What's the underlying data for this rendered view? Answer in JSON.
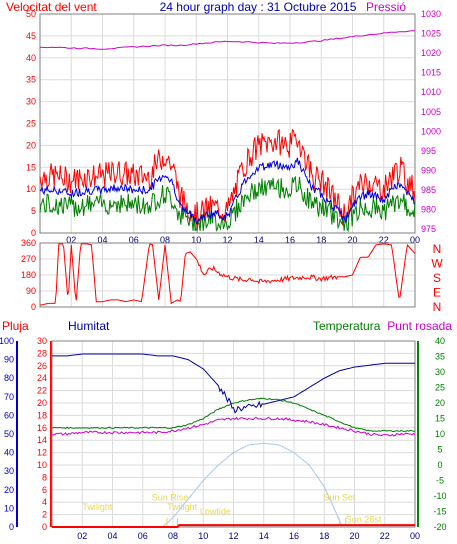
{
  "header": {
    "left_title": "Velocitat del vent",
    "center_title": "24 hour graph day : 31 Octubre 2015",
    "right_title": "Pressió"
  },
  "bottom_header": {
    "rain": "Pluja",
    "humidity": "Humitat",
    "temperature": "Temperatura",
    "dewpoint": "Punt rosada"
  },
  "colors": {
    "frame": "#7f7f7f",
    "grid": "#dcdcdc",
    "red": "#ff0000",
    "magenta": "#cc00cc",
    "blue": "#0000b4",
    "green": "#007f00",
    "sunblue": "#a8c8f0",
    "annotation": "#e8d84a",
    "darkblue": "#000080"
  },
  "chart_data": [
    {
      "type": "line",
      "title": "",
      "x_ticks": [
        "02",
        "04",
        "06",
        "08",
        "10",
        "12",
        "14",
        "16",
        "18",
        "20",
        "22",
        "00"
      ],
      "xlim": [
        0,
        24
      ],
      "y_left_ticks": [
        "0",
        "5",
        "10",
        "15",
        "20",
        "25",
        "30",
        "35",
        "40",
        "45",
        "50"
      ],
      "ylim_left": [
        0,
        50
      ],
      "y_right_ticks": [
        "975",
        "980",
        "985",
        "990",
        "995",
        "1000",
        "1005",
        "1010",
        "1015",
        "1020",
        "1025",
        "1030"
      ],
      "ylim_right": [
        974,
        1030
      ],
      "series": [
        {
          "name": "Velocitat del vent",
          "axis": "left",
          "color": "red",
          "style": "gust",
          "x": [
            0,
            1,
            2,
            3,
            4,
            5,
            6,
            7,
            7.5,
            8,
            8.5,
            9,
            10,
            11,
            12,
            12.5,
            13,
            13.5,
            14,
            15,
            16,
            16.5,
            17,
            17.5,
            18,
            19,
            19.5,
            20,
            20.5,
            21,
            22,
            22.5,
            23,
            23.5,
            24
          ],
          "values": [
            13,
            13,
            12,
            13,
            13,
            14,
            13,
            13,
            16,
            18,
            15,
            8,
            4,
            6,
            5,
            10,
            15,
            18,
            20,
            21,
            20,
            22,
            17,
            13,
            12,
            7,
            4,
            8,
            11,
            12,
            10,
            13,
            15,
            12,
            10
          ]
        },
        {
          "axis": "right",
          "color": "magenta",
          "style": "line",
          "x": [
            0,
            1,
            2,
            3,
            4,
            5,
            6,
            7,
            8,
            9,
            10,
            11,
            12,
            13,
            14,
            15,
            16,
            17,
            18,
            19,
            20,
            21,
            22,
            23,
            24
          ],
          "values": [
            1021.5,
            1021.5,
            1021.3,
            1021.2,
            1021.1,
            1021.3,
            1021.6,
            1021.8,
            1022,
            1022,
            1022.4,
            1022.7,
            1023,
            1022.9,
            1022.7,
            1022.5,
            1022.6,
            1022.8,
            1023.2,
            1023.7,
            1024.2,
            1024.7,
            1025.1,
            1025.5,
            1025.7
          ]
        }
      ]
    },
    {
      "type": "line",
      "title": "",
      "x_ticks": [
        "02",
        "04",
        "06",
        "08",
        "10",
        "12",
        "14",
        "16",
        "18",
        "20",
        "22",
        "00"
      ],
      "y_left_ticks": [
        "360",
        "270",
        "180",
        "90",
        "0"
      ],
      "ylim": [
        0,
        360
      ],
      "right_labels": [
        "N",
        "W",
        "S",
        "E",
        "N"
      ],
      "series": [
        {
          "color": "red",
          "style": "line",
          "x": [
            0,
            0.5,
            1,
            1.2,
            1.5,
            1.8,
            2,
            2.3,
            2.6,
            3,
            3.3,
            3.6,
            4,
            4.5,
            5,
            5.5,
            6,
            6.5,
            7,
            7.2,
            7.6,
            8,
            8.4,
            8.8,
            9,
            9.3,
            9.6,
            10,
            10.5,
            11,
            11.5,
            12,
            12.5,
            13,
            13.5,
            14,
            15,
            16,
            17,
            18,
            19,
            19.5,
            20,
            20.5,
            21,
            21.5,
            22,
            22.5,
            23,
            23.5,
            24
          ],
          "values": [
            10,
            20,
            20,
            355,
            355,
            25,
            350,
            15,
            355,
            355,
            350,
            30,
            30,
            40,
            40,
            30,
            40,
            30,
            355,
            350,
            40,
            350,
            20,
            40,
            30,
            300,
            310,
            270,
            180,
            220,
            190,
            170,
            160,
            150,
            160,
            140,
            150,
            160,
            170,
            160,
            170,
            170,
            180,
            280,
            280,
            350,
            355,
            350,
            30,
            350,
            300
          ]
        }
      ]
    },
    {
      "type": "line",
      "title": "",
      "x_ticks": [
        "02",
        "04",
        "06",
        "08",
        "10",
        "12",
        "14",
        "16",
        "18",
        "20",
        "22",
        "00"
      ],
      "ylim_humidity": [
        0,
        100
      ],
      "y_humidity_ticks": [
        "0",
        "10",
        "20",
        "30",
        "40",
        "50",
        "60",
        "70",
        "80",
        "90",
        "100"
      ],
      "ylim_rain": [
        0,
        30
      ],
      "y_rain_ticks": [
        "0",
        "2",
        "4",
        "6",
        "8",
        "10",
        "12",
        "14",
        "16",
        "18",
        "20",
        "22",
        "24",
        "26",
        "28",
        "30"
      ],
      "ylim_temp": [
        -20,
        40
      ],
      "y_temp_ticks": [
        "-20",
        "-15",
        "-10",
        "-5",
        "0",
        "5",
        "10",
        "15",
        "20",
        "25",
        "30",
        "35",
        "40"
      ],
      "annotations": [
        "Sun Rise",
        "Sun Set",
        "Twilight",
        "Twilight",
        "Lowtide",
        "Sun 28st"
      ],
      "series": [
        {
          "name": "Humitat",
          "axis": "humidity",
          "color": "darkblue",
          "x": [
            0,
            1,
            2,
            3,
            4,
            5,
            6,
            7,
            8,
            9,
            10,
            11,
            11.5,
            12,
            12.5,
            13,
            14,
            15,
            16,
            17,
            18,
            19,
            20,
            21,
            22,
            23,
            24
          ],
          "values": [
            92,
            92,
            93,
            93,
            93,
            93,
            93,
            92,
            92,
            90,
            85,
            76,
            70,
            63,
            64,
            64,
            66,
            68,
            70,
            75,
            80,
            84,
            86,
            87,
            88,
            88,
            88
          ]
        },
        {
          "name": "Temperatura",
          "axis": "temp",
          "color": "green",
          "x": [
            0,
            1,
            2,
            3,
            4,
            5,
            6,
            7,
            8,
            9,
            10,
            11,
            12,
            13,
            14,
            15,
            16,
            17,
            18,
            19,
            20,
            21,
            22,
            23,
            24
          ],
          "values": [
            12,
            12,
            12,
            12,
            12,
            12,
            12,
            12,
            12,
            13,
            15,
            18,
            20,
            21,
            21.5,
            21,
            20,
            18,
            16,
            14,
            12,
            11,
            11,
            11,
            11
          ]
        },
        {
          "name": "Punt rosada",
          "axis": "temp",
          "color": "magenta",
          "x": [
            0,
            1,
            2,
            3,
            4,
            5,
            6,
            7,
            8,
            9,
            10,
            11,
            12,
            13,
            14,
            15,
            16,
            17,
            18,
            19,
            20,
            21,
            22,
            23,
            24
          ],
          "values": [
            10,
            10,
            10.5,
            10.5,
            10.5,
            10.5,
            10.5,
            10.5,
            11,
            12,
            13,
            14.5,
            15,
            15,
            15,
            15,
            14.5,
            14,
            13,
            12,
            11,
            10,
            9.5,
            10,
            10
          ]
        },
        {
          "axis": "temp",
          "color": "sunblue",
          "x": [
            7.3,
            8,
            9,
            10,
            11,
            12,
            13,
            14,
            15,
            16,
            17,
            18,
            19.2
          ],
          "values": [
            -20,
            -17,
            -11,
            -5,
            0,
            4,
            6.5,
            7,
            6.5,
            4,
            0,
            -7,
            -20
          ]
        },
        {
          "name": "Pluja",
          "axis": "rain",
          "color": "red",
          "x": [
            0,
            8.3,
            8.4,
            24
          ],
          "values": [
            0,
            0,
            0.3,
            0.3
          ]
        }
      ]
    }
  ]
}
